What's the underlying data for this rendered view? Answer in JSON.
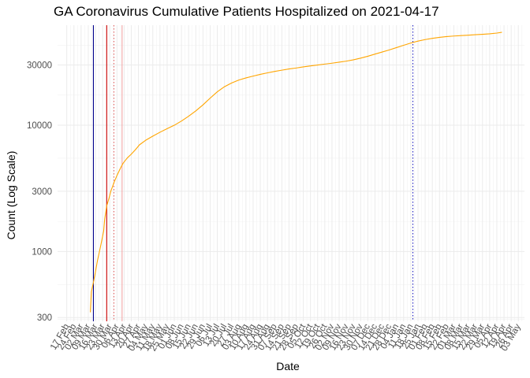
{
  "chart_data": {
    "type": "line",
    "title": "GA Coronavirus Cumulative Patients Hospitalized on 2021-04-17",
    "xlabel": "Date",
    "ylabel": "Count (Log Scale)",
    "y_scale": "log",
    "ylim": [
      280,
      62000
    ],
    "xlim": [
      "2020-02-08",
      "2021-05-09"
    ],
    "grid": true,
    "legend": "none",
    "y_ticks": [
      300,
      1000,
      3000,
      10000,
      30000
    ],
    "y_tick_labels": [
      "300",
      "1000",
      "3000",
      "10000",
      "30000"
    ],
    "x_ticks": [
      "2020-02-17",
      "2020-02-24",
      "2020-03-02",
      "2020-03-09",
      "2020-03-16",
      "2020-03-23",
      "2020-03-30",
      "2020-04-06",
      "2020-04-13",
      "2020-04-20",
      "2020-04-27",
      "2020-05-04",
      "2020-05-11",
      "2020-05-18",
      "2020-05-25",
      "2020-06-01",
      "2020-06-08",
      "2020-06-15",
      "2020-06-22",
      "2020-06-29",
      "2020-07-06",
      "2020-07-13",
      "2020-07-20",
      "2020-07-27",
      "2020-08-03",
      "2020-08-10",
      "2020-08-17",
      "2020-08-24",
      "2020-08-31",
      "2020-09-07",
      "2020-09-14",
      "2020-09-21",
      "2020-09-28",
      "2020-10-05",
      "2020-10-12",
      "2020-10-19",
      "2020-10-26",
      "2020-11-02",
      "2020-11-09",
      "2020-11-16",
      "2020-11-23",
      "2020-11-30",
      "2020-12-07",
      "2020-12-14",
      "2020-12-21",
      "2020-12-28",
      "2021-01-04",
      "2021-01-11",
      "2021-01-18",
      "2021-01-25",
      "2021-02-01",
      "2021-02-08",
      "2021-02-15",
      "2021-02-22",
      "2021-03-01",
      "2021-03-08",
      "2021-03-15",
      "2021-03-22",
      "2021-03-29",
      "2021-04-05",
      "2021-04-12",
      "2021-04-19",
      "2021-04-26",
      "2021-05-03"
    ],
    "x_tick_labels": [
      "17 Feb",
      "24 Feb",
      "02 Mar",
      "09 Mar",
      "16 Mar",
      "23 Mar",
      "30 Mar",
      "06 Apr",
      "13 Apr",
      "20 Apr",
      "27 Apr",
      "04 May",
      "11 May",
      "18 May",
      "25 May",
      "01 Jun",
      "08 Jun",
      "15 Jun",
      "22 Jun",
      "29 Jun",
      "06 Jul",
      "13 Jul",
      "20 Jul",
      "27 Jul",
      "03 Aug",
      "10 Aug",
      "17 Aug",
      "24 Aug",
      "31 Aug",
      "07 Sep",
      "14 Sep",
      "21 Sep",
      "28 Sep",
      "05 Oct",
      "12 Oct",
      "19 Oct",
      "26 Oct",
      "02 Nov",
      "09 Nov",
      "16 Nov",
      "23 Nov",
      "30 Nov",
      "07 Dec",
      "14 Dec",
      "21 Dec",
      "28 Dec",
      "04 Jan",
      "11 Jan",
      "18 Jan",
      "25 Jan",
      "01 Feb",
      "08 Feb",
      "15 Feb",
      "22 Feb",
      "01 Mar",
      "08 Mar",
      "15 Mar",
      "22 Mar",
      "29 Mar",
      "05 Apr",
      "12 Apr",
      "19 Apr",
      "26 Apr",
      "03 May"
    ],
    "series": [
      {
        "color": "#FFA500",
        "points": [
          [
            "2020-03-11",
            330
          ],
          [
            "2020-03-12",
            480
          ],
          [
            "2020-03-14",
            570
          ],
          [
            "2020-03-16",
            690
          ],
          [
            "2020-03-18",
            850
          ],
          [
            "2020-03-21",
            1100
          ],
          [
            "2020-03-24",
            1450
          ],
          [
            "2020-03-25",
            1800
          ],
          [
            "2020-03-27",
            2300
          ],
          [
            "2020-03-29",
            2600
          ],
          [
            "2020-03-31",
            3000
          ],
          [
            "2020-04-03",
            3500
          ],
          [
            "2020-04-06",
            4000
          ],
          [
            "2020-04-09",
            4500
          ],
          [
            "2020-04-12",
            5000
          ],
          [
            "2020-04-16",
            5500
          ],
          [
            "2020-04-20",
            5900
          ],
          [
            "2020-04-24",
            6400
          ],
          [
            "2020-04-28",
            7000
          ],
          [
            "2020-05-04",
            7600
          ],
          [
            "2020-05-11",
            8200
          ],
          [
            "2020-05-18",
            8800
          ],
          [
            "2020-05-25",
            9400
          ],
          [
            "2020-06-01",
            10000
          ],
          [
            "2020-06-08",
            10800
          ],
          [
            "2020-06-15",
            11800
          ],
          [
            "2020-06-22",
            13000
          ],
          [
            "2020-06-29",
            14500
          ],
          [
            "2020-07-06",
            16400
          ],
          [
            "2020-07-13",
            18400
          ],
          [
            "2020-07-20",
            20200
          ],
          [
            "2020-07-27",
            21600
          ],
          [
            "2020-08-03",
            22800
          ],
          [
            "2020-08-10",
            23700
          ],
          [
            "2020-08-17",
            24500
          ],
          [
            "2020-08-24",
            25300
          ],
          [
            "2020-08-31",
            26000
          ],
          [
            "2020-09-07",
            26700
          ],
          [
            "2020-09-14",
            27300
          ],
          [
            "2020-09-21",
            27900
          ],
          [
            "2020-09-28",
            28400
          ],
          [
            "2020-10-05",
            29000
          ],
          [
            "2020-10-12",
            29500
          ],
          [
            "2020-10-19",
            30000
          ],
          [
            "2020-10-26",
            30500
          ],
          [
            "2020-11-02",
            31000
          ],
          [
            "2020-11-09",
            31600
          ],
          [
            "2020-11-16",
            32200
          ],
          [
            "2020-11-23",
            33000
          ],
          [
            "2020-11-30",
            34000
          ],
          [
            "2020-12-07",
            35200
          ],
          [
            "2020-12-14",
            36600
          ],
          [
            "2020-12-21",
            38000
          ],
          [
            "2020-12-28",
            39500
          ],
          [
            "2021-01-04",
            41200
          ],
          [
            "2021-01-11",
            43000
          ],
          [
            "2021-01-18",
            44800
          ],
          [
            "2021-01-25",
            46400
          ],
          [
            "2021-02-01",
            47700
          ],
          [
            "2021-02-08",
            48800
          ],
          [
            "2021-02-15",
            49700
          ],
          [
            "2021-02-22",
            50400
          ],
          [
            "2021-03-01",
            50900
          ],
          [
            "2021-03-08",
            51300
          ],
          [
            "2021-03-15",
            51700
          ],
          [
            "2021-03-22",
            52100
          ],
          [
            "2021-03-29",
            52500
          ],
          [
            "2021-04-05",
            53000
          ],
          [
            "2021-04-12",
            53700
          ],
          [
            "2021-04-17",
            54500
          ]
        ]
      }
    ],
    "vertical_lines": [
      {
        "x": "2020-03-14",
        "color": "#00008B",
        "style": "solid"
      },
      {
        "x": "2020-03-27",
        "color": "#CC0000",
        "style": "solid"
      },
      {
        "x": "2020-04-03",
        "color": "#E06060",
        "style": "dotted"
      },
      {
        "x": "2020-04-11",
        "color": "#F2A6A6",
        "style": "solid"
      },
      {
        "x": "2021-01-20",
        "color": "#2020C0",
        "style": "dotted"
      }
    ]
  }
}
